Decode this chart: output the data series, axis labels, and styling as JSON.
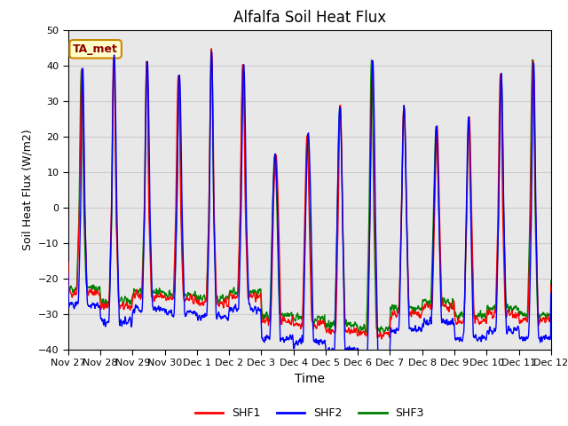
{
  "title": "Alfalfa Soil Heat Flux",
  "xlabel": "Time",
  "ylabel": "Soil Heat Flux (W/m2)",
  "ylim": [
    -40,
    50
  ],
  "tick_labels": [
    "Nov 27",
    "Nov 28",
    "Nov 29",
    "Nov 30",
    "Dec 1",
    "Dec 2",
    "Dec 3",
    "Dec 4",
    "Dec 5",
    "Dec 6",
    "Dec 7",
    "Dec 8",
    "Dec 9",
    "Dec 10",
    "Dec 11",
    "Dec 12"
  ],
  "annotation_text": "TA_met",
  "annotation_bg": "#ffffcc",
  "annotation_border": "#cc8800",
  "grid_color": "#cccccc",
  "plot_bg": "#e8e8e8",
  "shf1_color": "red",
  "shf2_color": "blue",
  "shf3_color": "green",
  "linewidth": 1.0,
  "peak_amplitudes": [
    40,
    44,
    42,
    38,
    45,
    41,
    15,
    21,
    29,
    42,
    29,
    23,
    26,
    38,
    42
  ],
  "night_base_r": -18,
  "night_base_g": -18,
  "night_base_b": -23,
  "trough_depths": [
    -24,
    -28,
    -25,
    -26,
    -27,
    -25,
    -32,
    -33,
    -35,
    -36,
    -30,
    -28,
    -32,
    -30,
    -32
  ]
}
